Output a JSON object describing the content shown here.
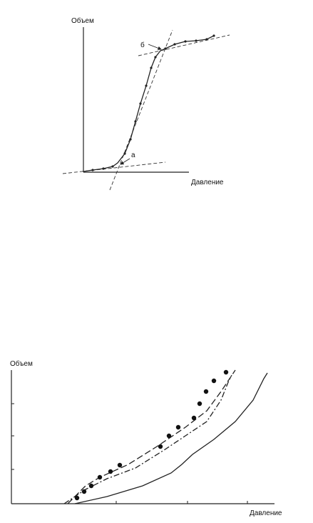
{
  "figure_top": {
    "y_label": "Объем",
    "x_label": "Давление",
    "annotations": [
      "б",
      "а"
    ]
  },
  "figure_bottom": {
    "y_label": "Объем",
    "x_label": "Давление"
  }
}
